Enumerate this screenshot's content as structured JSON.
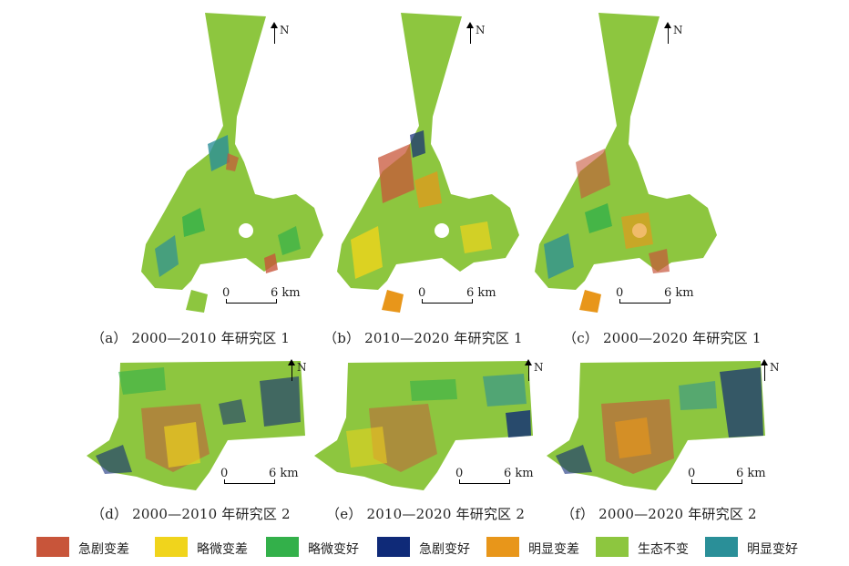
{
  "north_label": "N",
  "scale": {
    "start": "0",
    "end": "6 km"
  },
  "panels": [
    {
      "caption": "（a） 2000—2010 年研究区 1"
    },
    {
      "caption": "（b） 2010—2020 年研究区 1"
    },
    {
      "caption": "（c） 2000—2020 年研究区 1"
    },
    {
      "caption": "（d） 2000—2010 年研究区 2"
    },
    {
      "caption": "（e） 2010—2020 年研究区 2"
    },
    {
      "caption": "（f） 2000—2020 年研究区 2"
    }
  ],
  "legend": [
    {
      "label": "急剧变差",
      "color": "#c8553a"
    },
    {
      "label": "略微变差",
      "color": "#f0d41c"
    },
    {
      "label": "略微变好",
      "color": "#33b04a"
    },
    {
      "label": "急剧变好",
      "color": "#0f2a78"
    },
    {
      "label": "明显变差",
      "color": "#e8961a"
    },
    {
      "label": "生态不变",
      "color": "#8dc63f"
    },
    {
      "label": "明显变好",
      "color": "#2a8f98"
    }
  ]
}
